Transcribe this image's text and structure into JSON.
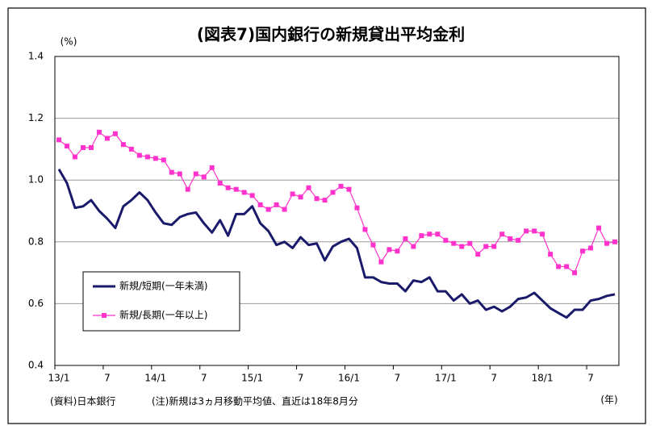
{
  "chart_data": {
    "type": "line",
    "title": "(図表7)国内銀行の新規貸出平均金利",
    "y_unit": "(%)",
    "x_unit": "(年)",
    "source": "(資料)日本銀行",
    "note": "(注)新規は3ヵ月移動平均値、直近は18年8月分",
    "categories": [
      "13/1",
      null,
      null,
      null,
      null,
      null,
      "7",
      null,
      null,
      null,
      null,
      null,
      "14/1",
      null,
      null,
      null,
      null,
      null,
      "7",
      null,
      null,
      null,
      null,
      null,
      "15/1",
      null,
      null,
      null,
      null,
      null,
      "7",
      null,
      null,
      null,
      null,
      null,
      "16/1",
      null,
      null,
      null,
      null,
      null,
      "7",
      null,
      null,
      null,
      null,
      null,
      "17/1",
      null,
      null,
      null,
      null,
      null,
      "7",
      null,
      null,
      null,
      null,
      null,
      "18/1",
      null,
      null,
      null,
      null,
      null,
      "7",
      null,
      null,
      null
    ],
    "series": [
      {
        "name": "新規/短期(一年未満)",
        "color": "#1a1a6b",
        "marker": false,
        "values": [
          1.035,
          0.99,
          0.91,
          0.915,
          0.935,
          0.9,
          0.875,
          0.845,
          0.915,
          0.935,
          0.96,
          0.935,
          0.895,
          0.86,
          0.855,
          0.88,
          0.89,
          0.895,
          0.86,
          0.83,
          0.87,
          0.82,
          0.89,
          0.89,
          0.915,
          0.86,
          0.835,
          0.79,
          0.8,
          0.78,
          0.815,
          0.79,
          0.795,
          0.74,
          0.785,
          0.8,
          0.81,
          0.78,
          0.685,
          0.685,
          0.67,
          0.665,
          0.665,
          0.64,
          0.675,
          0.67,
          0.685,
          0.64,
          0.64,
          0.61,
          0.63,
          0.6,
          0.61,
          0.58,
          0.59,
          0.575,
          0.59,
          0.615,
          0.62,
          0.635,
          0.61,
          0.585,
          0.57,
          0.555,
          0.58,
          0.58,
          0.61,
          0.615,
          0.625,
          0.63
        ]
      },
      {
        "name": "新規/長期(一年以上)",
        "color": "#ff33cc",
        "marker": true,
        "values": [
          1.13,
          1.11,
          1.075,
          1.105,
          1.105,
          1.155,
          1.135,
          1.15,
          1.115,
          1.1,
          1.08,
          1.075,
          1.07,
          1.065,
          1.025,
          1.02,
          0.97,
          1.02,
          1.01,
          1.04,
          0.99,
          0.975,
          0.97,
          0.96,
          0.95,
          0.92,
          0.905,
          0.92,
          0.905,
          0.955,
          0.945,
          0.975,
          0.94,
          0.935,
          0.96,
          0.98,
          0.97,
          0.91,
          0.84,
          0.79,
          0.735,
          0.775,
          0.77,
          0.81,
          0.785,
          0.82,
          0.825,
          0.825,
          0.805,
          0.795,
          0.785,
          0.795,
          0.76,
          0.785,
          0.785,
          0.825,
          0.81,
          0.805,
          0.835,
          0.835,
          0.825,
          0.76,
          0.72,
          0.72,
          0.7,
          0.77,
          0.78,
          0.845,
          0.795,
          0.8
        ]
      }
    ],
    "ylim": [
      0.4,
      1.4
    ],
    "yticks": [
      0.4,
      0.6,
      0.8,
      {
        "value": 1.0,
        "label": "1.0"
      },
      1.2,
      1.4
    ],
    "grid": true
  }
}
